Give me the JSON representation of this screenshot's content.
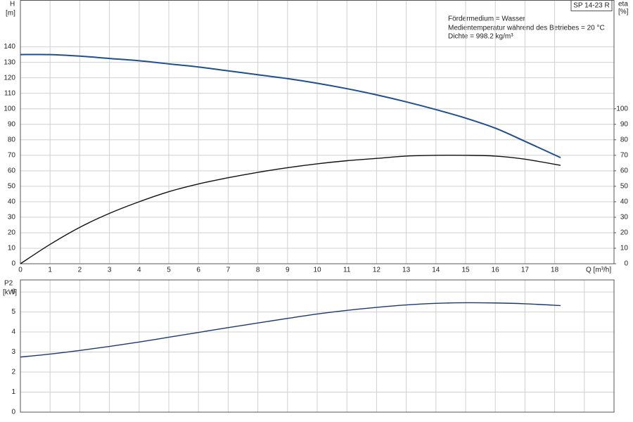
{
  "chart_data": [
    {
      "type": "line",
      "ylabel": "H",
      "ylabel_unit": "[m]",
      "y2label": "eta",
      "y2label_unit": "[%]",
      "xlabel": "Q [m³/h]",
      "tag": "SP 14-23 R",
      "annotations": [
        "Fördermedium = Wasser",
        "Medientemperatur während des Betriebes = 20 °C",
        "Dichte = 998.2 kg/m³"
      ],
      "x": [
        0,
        1,
        2,
        3,
        4,
        5,
        6,
        7,
        8,
        9,
        10,
        11,
        12,
        13,
        14,
        15,
        16,
        17,
        18.2
      ],
      "xlim": [
        0,
        20
      ],
      "xticks": [
        0,
        1,
        2,
        3,
        4,
        5,
        6,
        7,
        8,
        9,
        10,
        11,
        12,
        13,
        14,
        15,
        16,
        17,
        18
      ],
      "ylim": [
        0,
        170
      ],
      "yticks": [
        0,
        10,
        20,
        30,
        40,
        50,
        60,
        70,
        80,
        90,
        100,
        110,
        120,
        130,
        140
      ],
      "y2lim": [
        0,
        170
      ],
      "y2ticks": [
        0,
        10,
        20,
        30,
        40,
        50,
        60,
        70,
        80,
        90,
        100
      ],
      "grid": true,
      "series": [
        {
          "color": "#1f4f8f",
          "values": [
            135,
            135,
            134,
            132.5,
            131,
            129,
            127,
            124.5,
            122,
            119.5,
            116.5,
            113,
            109,
            104.5,
            99.5,
            94,
            87.5,
            79,
            68.5
          ]
        },
        {
          "color": "#111111",
          "axis": "y2",
          "values": [
            0,
            12.5,
            23.5,
            32.5,
            40,
            46.5,
            51.5,
            55.5,
            59,
            62,
            64.5,
            66.5,
            68,
            69.5,
            70,
            70,
            69.5,
            67.5,
            63.5
          ]
        }
      ]
    },
    {
      "type": "line",
      "ylabel": "P2",
      "ylabel_unit": "[kW]",
      "x": [
        0,
        1,
        2,
        3,
        4,
        5,
        6,
        7,
        8,
        9,
        10,
        11,
        12,
        13,
        14,
        15,
        16,
        17,
        18.2
      ],
      "xlim": [
        0,
        20
      ],
      "xgrid": [
        0,
        1,
        2,
        3,
        4,
        5,
        6,
        7,
        8,
        9,
        10,
        11,
        12,
        13,
        14,
        15,
        16,
        17,
        18,
        19
      ],
      "ylim": [
        0,
        6.6
      ],
      "yticks": [
        0,
        1,
        2,
        3,
        4,
        5,
        6
      ],
      "grid": true,
      "series": [
        {
          "color": "#1a3a6e",
          "values": [
            2.75,
            2.9,
            3.08,
            3.28,
            3.5,
            3.74,
            3.98,
            4.22,
            4.45,
            4.68,
            4.9,
            5.08,
            5.23,
            5.35,
            5.43,
            5.46,
            5.45,
            5.41,
            5.32
          ]
        }
      ]
    }
  ]
}
